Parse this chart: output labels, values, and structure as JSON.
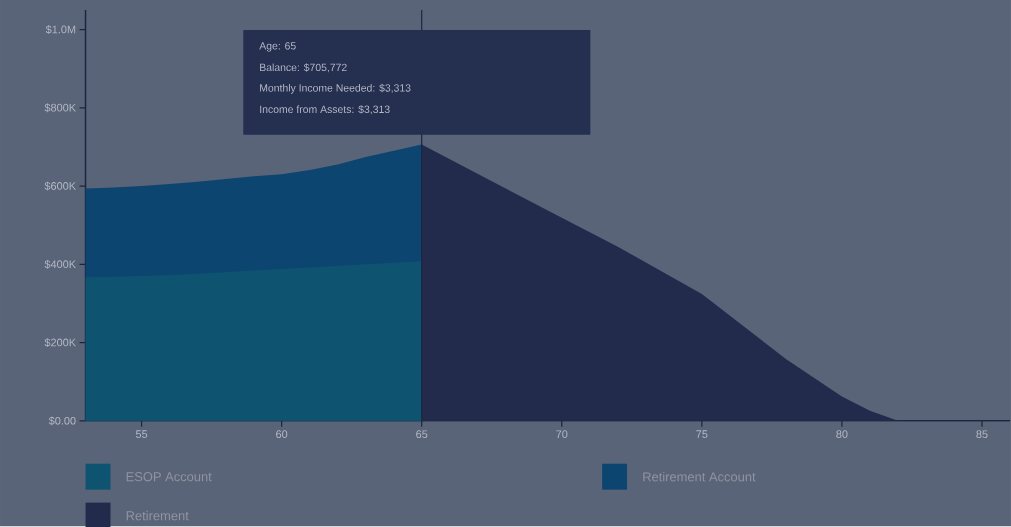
{
  "chart_data": {
    "type": "area",
    "x": [
      53,
      54,
      55,
      56,
      57,
      58,
      59,
      60,
      61,
      62,
      63,
      64,
      65
    ],
    "series": [
      {
        "name": "ESOP Account",
        "color": "#0e5470",
        "values": [
          367000,
          368000,
          370000,
          373000,
          376000,
          380000,
          384000,
          388000,
          392000,
          396000,
          400000,
          404000,
          408000
        ]
      },
      {
        "name": "Retirement Account",
        "color": "#0d4571",
        "values": [
          594000,
          596000,
          600000,
          605000,
          611000,
          618000,
          625000,
          630000,
          641000,
          655000,
          674000,
          690000,
          706000
        ]
      },
      {
        "name": "Retirement",
        "color": "#232b4d",
        "x": [
          65,
          70,
          72,
          75,
          78,
          80,
          81,
          82
        ],
        "values": [
          706000,
          519000,
          445000,
          324000,
          158000,
          62000,
          26000,
          0
        ]
      }
    ],
    "xlim": [
      53,
      86
    ],
    "ylim": [
      0,
      1050000
    ],
    "xticks": [
      55,
      60,
      65,
      70,
      75,
      80,
      85
    ],
    "yticks": [
      {
        "value": 0,
        "label": "$0.00"
      },
      {
        "value": 200000,
        "label": "$200K"
      },
      {
        "value": 400000,
        "label": "$400K"
      },
      {
        "value": 600000,
        "label": "$600K"
      },
      {
        "value": 800000,
        "label": "$800K"
      },
      {
        "value": 1000000,
        "label": "$1.0M"
      }
    ],
    "ref_lines": [
      {
        "axis": "x",
        "value": 65,
        "color": "#1e2440"
      }
    ],
    "annotations": [
      "Age: 65",
      "Balance: $705,772",
      "Monthly Income Needed: $3,313",
      "Income from Assets: $3,313"
    ],
    "legend": "bottom"
  }
}
